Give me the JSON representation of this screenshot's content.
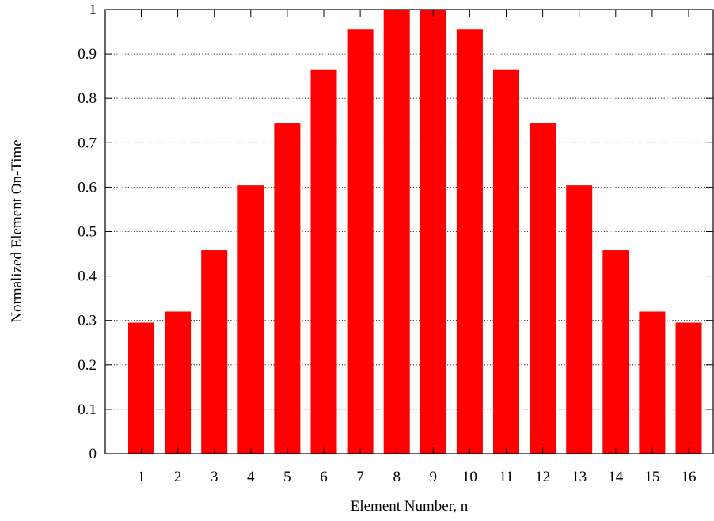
{
  "chart_data": {
    "type": "bar",
    "categories": [
      "1",
      "2",
      "3",
      "4",
      "5",
      "6",
      "7",
      "8",
      "9",
      "10",
      "11",
      "12",
      "13",
      "14",
      "15",
      "16"
    ],
    "values": [
      0.295,
      0.32,
      0.458,
      0.604,
      0.745,
      0.865,
      0.955,
      1.0,
      1.0,
      0.955,
      0.865,
      0.745,
      0.604,
      0.458,
      0.32,
      0.295
    ],
    "xlabel": "Element Number, n",
    "ylabel": "Normalized Element On-Time",
    "ylim": [
      0,
      1
    ],
    "yticks": [
      "0",
      "0.1",
      "0.2",
      "0.3",
      "0.4",
      "0.5",
      "0.6",
      "0.7",
      "0.8",
      "0.9",
      "1"
    ],
    "grid": "horizontal-dotted",
    "bar_color": "#ff0000"
  }
}
